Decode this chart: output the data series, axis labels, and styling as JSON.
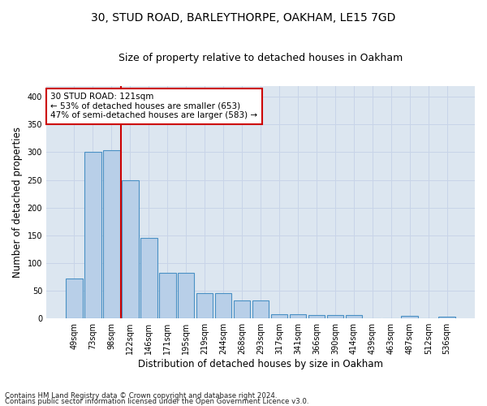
{
  "title1": "30, STUD ROAD, BARLEYTHORPE, OAKHAM, LE15 7GD",
  "title2": "Size of property relative to detached houses in Oakham",
  "xlabel": "Distribution of detached houses by size in Oakham",
  "ylabel": "Number of detached properties",
  "categories": [
    "49sqm",
    "73sqm",
    "98sqm",
    "122sqm",
    "146sqm",
    "171sqm",
    "195sqm",
    "219sqm",
    "244sqm",
    "268sqm",
    "293sqm",
    "317sqm",
    "341sqm",
    "366sqm",
    "390sqm",
    "414sqm",
    "439sqm",
    "463sqm",
    "487sqm",
    "512sqm",
    "536sqm"
  ],
  "values": [
    72,
    300,
    303,
    250,
    145,
    83,
    83,
    45,
    45,
    32,
    32,
    8,
    8,
    6,
    6,
    6,
    0,
    0,
    4,
    0,
    3
  ],
  "bar_color": "#b8cfe8",
  "bar_edge_color": "#4a90c4",
  "vline_x_index": 2.5,
  "vline_color": "#cc0000",
  "annotation_line1": "30 STUD ROAD: 121sqm",
  "annotation_line2": "← 53% of detached houses are smaller (653)",
  "annotation_line3": "47% of semi-detached houses are larger (583) →",
  "annotation_box_color": "#ffffff",
  "annotation_box_edge": "#cc0000",
  "grid_color": "#c8d4e8",
  "background_color": "#dce6f0",
  "ylim": [
    0,
    420
  ],
  "yticks": [
    0,
    50,
    100,
    150,
    200,
    250,
    300,
    350,
    400
  ],
  "footnote1": "Contains HM Land Registry data © Crown copyright and database right 2024.",
  "footnote2": "Contains public sector information licensed under the Open Government Licence v3.0.",
  "title1_fontsize": 10,
  "title2_fontsize": 9,
  "xlabel_fontsize": 8.5,
  "ylabel_fontsize": 8.5,
  "tick_fontsize": 7,
  "annotation_fontsize": 7.5
}
